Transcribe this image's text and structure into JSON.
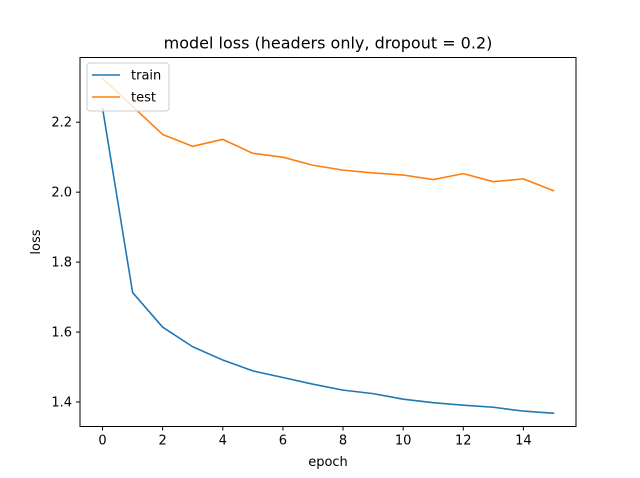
{
  "chart_data": {
    "type": "line",
    "title": "model loss (headers only, dropout = 0.2)",
    "xlabel": "epoch",
    "ylabel": "loss",
    "xlim": [
      -0.75,
      15.75
    ],
    "ylim": [
      1.33,
      2.385
    ],
    "x_ticks": [
      0,
      2,
      4,
      6,
      8,
      10,
      12,
      14
    ],
    "y_ticks": [
      1.4,
      1.6,
      1.8,
      2.0,
      2.2
    ],
    "x_tick_labels": [
      "0",
      "2",
      "4",
      "6",
      "8",
      "10",
      "12",
      "14"
    ],
    "y_tick_labels": [
      "1.4",
      "1.6",
      "1.8",
      "2.0",
      "2.2"
    ],
    "grid": false,
    "legend": "upper-left",
    "x": [
      0,
      1,
      2,
      3,
      4,
      5,
      6,
      7,
      8,
      9,
      10,
      11,
      12,
      13,
      14,
      15
    ],
    "series": [
      {
        "name": "train",
        "color": "#1f77b4",
        "values": [
          2.24,
          1.713,
          1.614,
          1.558,
          1.52,
          1.489,
          1.47,
          1.451,
          1.434,
          1.424,
          1.408,
          1.398,
          1.391,
          1.385,
          1.374,
          1.368
        ]
      },
      {
        "name": "test",
        "color": "#ff7f0e",
        "values": [
          2.325,
          2.245,
          2.165,
          2.131,
          2.151,
          2.111,
          2.1,
          2.077,
          2.063,
          2.055,
          2.049,
          2.036,
          2.053,
          2.03,
          2.038,
          2.004
        ]
      }
    ]
  }
}
